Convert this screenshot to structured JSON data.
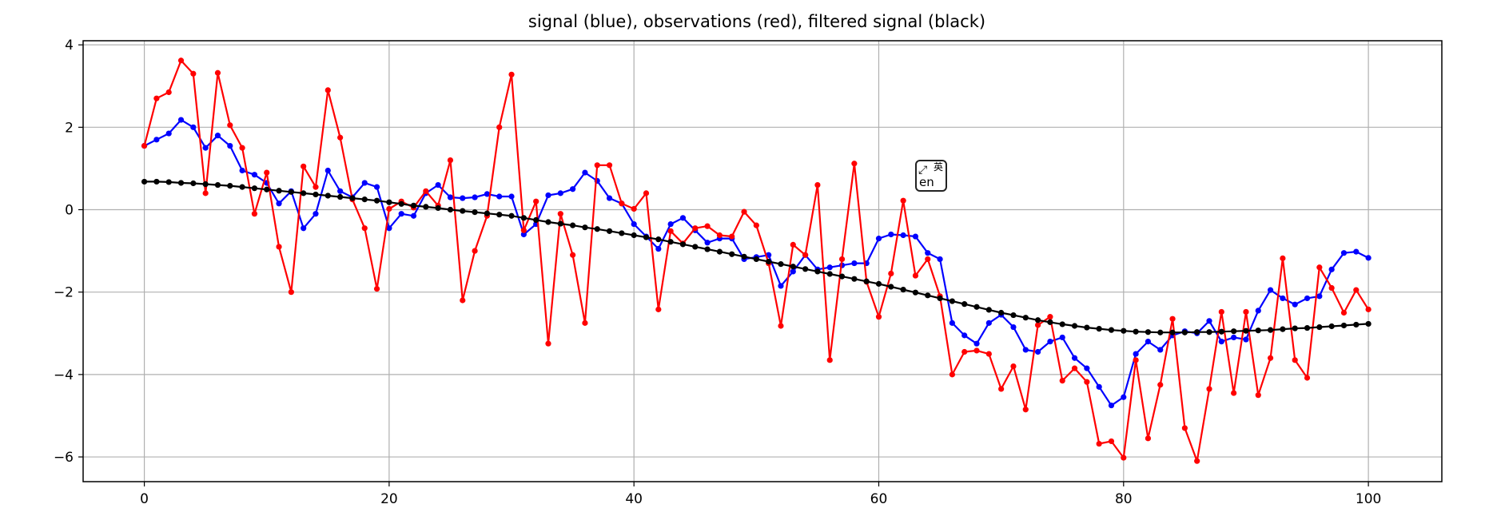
{
  "chart_data": {
    "type": "line",
    "title": "signal (blue), observations (red),  filtered signal (black)",
    "xlabel": "",
    "ylabel": "",
    "xlim": [
      -5,
      106
    ],
    "ylim": [
      -6.6,
      4.1
    ],
    "x_ticks": [
      0,
      20,
      40,
      60,
      80,
      100
    ],
    "y_ticks": [
      4,
      2,
      0,
      -2,
      -4,
      -6
    ],
    "grid": true,
    "x": [
      0,
      1,
      2,
      3,
      4,
      5,
      6,
      7,
      8,
      9,
      10,
      11,
      12,
      13,
      14,
      15,
      16,
      17,
      18,
      19,
      20,
      21,
      22,
      23,
      24,
      25,
      26,
      27,
      28,
      29,
      30,
      31,
      32,
      33,
      34,
      35,
      36,
      37,
      38,
      39,
      40,
      41,
      42,
      43,
      44,
      45,
      46,
      47,
      48,
      49,
      50,
      51,
      52,
      53,
      54,
      55,
      56,
      57,
      58,
      59,
      60,
      61,
      62,
      63,
      64,
      65,
      66,
      67,
      68,
      69,
      70,
      71,
      72,
      73,
      74,
      75,
      76,
      77,
      78,
      79,
      80,
      81,
      82,
      83,
      84,
      85,
      86,
      87,
      88,
      89,
      90,
      91,
      92,
      93,
      94,
      95,
      96,
      97,
      98,
      99,
      100
    ],
    "series": [
      {
        "color": "#0000ff",
        "values": [
          1.55,
          1.7,
          1.85,
          2.18,
          2.0,
          1.5,
          1.8,
          1.55,
          0.95,
          0.85,
          0.65,
          0.15,
          0.45,
          -0.45,
          -0.1,
          0.95,
          0.45,
          0.3,
          0.65,
          0.55,
          -0.45,
          -0.1,
          -0.15,
          0.4,
          0.6,
          0.3,
          0.28,
          0.3,
          0.38,
          0.32,
          0.32,
          -0.6,
          -0.35,
          0.35,
          0.4,
          0.5,
          0.9,
          0.7,
          0.28,
          0.15,
          -0.35,
          -0.65,
          -0.95,
          -0.35,
          -0.2,
          -0.5,
          -0.8,
          -0.7,
          -0.7,
          -1.2,
          -1.15,
          -1.1,
          -1.85,
          -1.5,
          -1.1,
          -1.45,
          -1.4,
          -1.35,
          -1.3,
          -1.3,
          -0.7,
          -0.6,
          -0.62,
          -0.65,
          -1.05,
          -1.2,
          -2.75,
          -3.05,
          -3.25,
          -2.75,
          -2.55,
          -2.85,
          -3.4,
          -3.45,
          -3.2,
          -3.1,
          -3.6,
          -3.85,
          -4.3,
          -4.75,
          -4.55,
          -3.5,
          -3.2,
          -3.4,
          -3.05,
          -2.95,
          -3.0,
          -2.7,
          -3.2,
          -3.1,
          -3.15,
          -2.45,
          -1.95,
          -2.15,
          -2.3,
          -2.15,
          -2.1,
          -1.45,
          -1.05,
          -1.02,
          -1.17
        ]
      },
      {
        "color": "#ff0000",
        "values": [
          1.55,
          2.7,
          2.85,
          3.62,
          3.3,
          0.4,
          3.32,
          2.05,
          1.5,
          -0.1,
          0.9,
          -0.9,
          -2.0,
          1.05,
          0.55,
          2.9,
          1.75,
          0.25,
          -0.45,
          -1.92,
          0.02,
          0.2,
          0.05,
          0.45,
          0.1,
          1.2,
          -2.2,
          -1.0,
          -0.15,
          2.0,
          3.28,
          -0.5,
          0.2,
          -3.25,
          -0.1,
          -1.1,
          -2.75,
          1.08,
          1.08,
          0.15,
          0.02,
          0.4,
          -2.42,
          -0.52,
          -0.82,
          -0.45,
          -0.4,
          -0.62,
          -0.65,
          -0.05,
          -0.38,
          -1.3,
          -2.82,
          -0.85,
          -1.1,
          0.6,
          -3.65,
          -1.2,
          1.12,
          -1.75,
          -2.6,
          -1.55,
          0.22,
          -1.6,
          -1.2,
          -2.1,
          -4.0,
          -3.45,
          -3.42,
          -3.5,
          -4.35,
          -3.8,
          -4.85,
          -2.8,
          -2.6,
          -4.15,
          -3.85,
          -4.18,
          -5.68,
          -5.62,
          -6.02,
          -3.65,
          -5.55,
          -4.25,
          -2.65,
          -5.3,
          -6.1,
          -4.35,
          -2.48,
          -4.45,
          -2.48,
          -4.5,
          -3.6,
          -1.18,
          -3.65,
          -4.08,
          -1.4,
          -1.9,
          -2.5,
          -1.95,
          -2.42
        ]
      },
      {
        "color": "#000000",
        "values": [
          0.68,
          0.68,
          0.67,
          0.65,
          0.64,
          0.62,
          0.6,
          0.58,
          0.55,
          0.52,
          0.49,
          0.46,
          0.43,
          0.4,
          0.37,
          0.34,
          0.31,
          0.28,
          0.25,
          0.22,
          0.18,
          0.14,
          0.1,
          0.07,
          0.04,
          0.0,
          -0.03,
          -0.06,
          -0.09,
          -0.12,
          -0.15,
          -0.2,
          -0.25,
          -0.3,
          -0.34,
          -0.38,
          -0.43,
          -0.47,
          -0.52,
          -0.57,
          -0.62,
          -0.67,
          -0.72,
          -0.78,
          -0.84,
          -0.9,
          -0.96,
          -1.02,
          -1.08,
          -1.14,
          -1.2,
          -1.26,
          -1.32,
          -1.38,
          -1.44,
          -1.5,
          -1.56,
          -1.62,
          -1.68,
          -1.74,
          -1.8,
          -1.87,
          -1.94,
          -2.01,
          -2.08,
          -2.15,
          -2.22,
          -2.29,
          -2.36,
          -2.43,
          -2.5,
          -2.56,
          -2.62,
          -2.68,
          -2.73,
          -2.78,
          -2.82,
          -2.86,
          -2.89,
          -2.92,
          -2.94,
          -2.96,
          -2.97,
          -2.98,
          -2.98,
          -2.98,
          -2.97,
          -2.97,
          -2.96,
          -2.95,
          -2.94,
          -2.93,
          -2.92,
          -2.9,
          -2.88,
          -2.87,
          -2.85,
          -2.83,
          -2.81,
          -2.79,
          -2.77
        ]
      }
    ]
  },
  "overlay": {
    "ime_en": "en",
    "ime_cn": "英",
    "ime_icon": "input-method-switch-icon"
  }
}
